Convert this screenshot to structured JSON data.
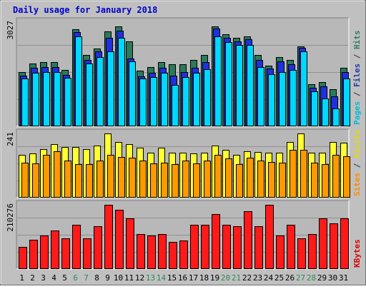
{
  "chart_data": {
    "type": "bar",
    "title": "Daily usage for January 2018",
    "categories": [
      "1",
      "2",
      "3",
      "4",
      "5",
      "6",
      "7",
      "8",
      "9",
      "10",
      "11",
      "12",
      "13",
      "14",
      "15",
      "16",
      "17",
      "18",
      "19",
      "20",
      "21",
      "22",
      "23",
      "24",
      "25",
      "26",
      "27",
      "28",
      "29",
      "30",
      "31"
    ],
    "weekend_days": [
      "6",
      "7",
      "13",
      "14",
      "20",
      "21",
      "27",
      "28"
    ],
    "panels": [
      {
        "id": "top",
        "max_label": "3027",
        "ylim": [
          0,
          3027
        ],
        "legend": [
          {
            "text": "Pages",
            "color": "#00bcd4"
          },
          {
            "text": " / ",
            "color": "#333333"
          },
          {
            "text": "Files",
            "color": "#1e3aa8"
          },
          {
            "text": " / ",
            "color": "#333333"
          },
          {
            "text": "Hits",
            "color": "#2e7d5b"
          }
        ],
        "series": [
          {
            "name": "Hits",
            "color": "#2b7a5a",
            "values": [
              1570,
              1820,
              1870,
              1870,
              1630,
              2820,
              2070,
              2250,
              2760,
              2900,
              2470,
              1620,
              1720,
              1870,
              1810,
              1800,
              1930,
              2070,
              2900,
              2670,
              2570,
              2620,
              2080,
              1770,
              2020,
              1930,
              2330,
              1230,
              1290,
              1070,
              1710
            ]
          },
          {
            "name": "Files",
            "color": "#2030e0",
            "values": [
              1480,
              1690,
              1720,
              1720,
              1500,
              2730,
              1920,
              2170,
              2570,
              2780,
              1970,
              1450,
              1560,
              1710,
              1470,
              1570,
              1710,
              1870,
              2850,
              2570,
              2470,
              2520,
              1920,
              1670,
              1890,
              1810,
              2280,
              1120,
              1160,
              870,
              1570
            ]
          },
          {
            "name": "Pages",
            "color": "#00d8ff",
            "values": [
              1380,
              1560,
              1580,
              1580,
              1410,
              2620,
              1830,
              2020,
              2180,
              2570,
              1880,
              1380,
              1440,
              1560,
              1210,
              1440,
              1560,
              1650,
              2620,
              2450,
              2370,
              2370,
              1730,
              1510,
              1580,
              1640,
              2170,
              1020,
              800,
              510,
              1380
            ]
          }
        ]
      },
      {
        "id": "mid",
        "max_label": "241",
        "ylim": [
          0,
          241
        ],
        "legend": [
          {
            "text": "Sites",
            "color": "#ff8c00"
          },
          {
            "text": " / ",
            "color": "#333333"
          },
          {
            "text": "Visits",
            "color": "#e8d800"
          }
        ],
        "series": [
          {
            "name": "Visits",
            "color": "#ffff33",
            "values": [
              160,
              165,
              182,
              202,
              190,
              190,
              182,
              195,
              241,
              210,
              200,
              188,
              168,
              188,
              168,
              168,
              165,
              170,
              195,
              180,
              162,
              175,
              172,
              170,
              168,
              210,
              240,
              170,
              170,
              210,
              205
            ]
          },
          {
            "name": "Sites",
            "color": "#ff9900",
            "values": [
              130,
              128,
              160,
              175,
              140,
              125,
              125,
              140,
              160,
              153,
              150,
              140,
              128,
              130,
              125,
              140,
              128,
              140,
              160,
              148,
              125,
              150,
              140,
              135,
              130,
              180,
              180,
              130,
              125,
              162,
              155
            ]
          }
        ]
      },
      {
        "id": "bot",
        "max_label": "210276",
        "ylim": [
          0,
          210276
        ],
        "legend": [
          {
            "text": "KBytes",
            "color": "#e00000"
          }
        ],
        "series": [
          {
            "name": "KBytes",
            "color": "#ff1a1a",
            "values": [
              72000,
              95000,
              110000,
              125000,
              100000,
              145000,
              100000,
              140000,
              210276,
              195000,
              165000,
              115000,
              110000,
              115000,
              88000,
              93000,
              145000,
              145000,
              180000,
              145000,
              140000,
              190000,
              140000,
              210276,
              110000,
              145000,
              100000,
              115000,
              165000,
              150000,
              165000
            ]
          }
        ]
      }
    ]
  }
}
